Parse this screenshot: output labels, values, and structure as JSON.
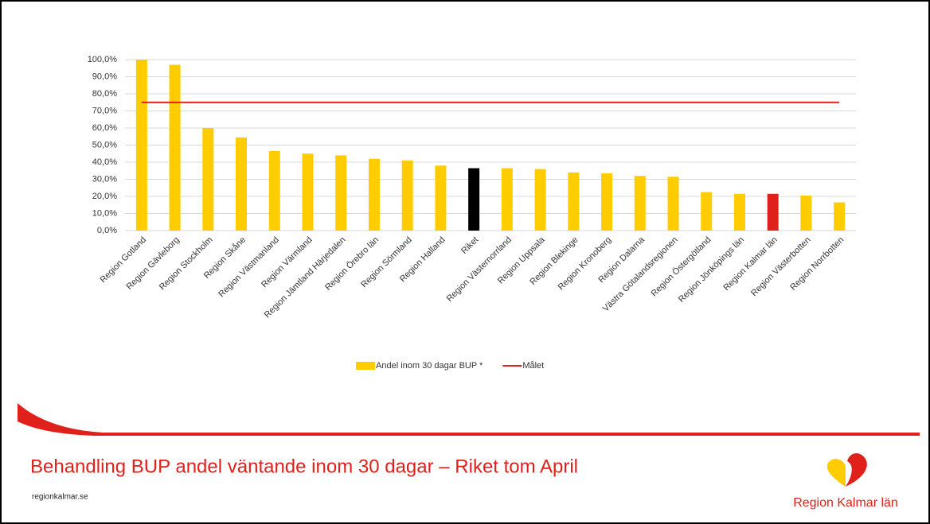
{
  "chart_data": {
    "type": "bar",
    "categories": [
      "Region Gotland",
      "Region Gävleborg",
      "Region Stockholm",
      "Region Skåne",
      "Region Västmanland",
      "Region Värmland",
      "Region Jämtland Härjedalen",
      "Region Örebro län",
      "Region Sörmland",
      "Region Halland",
      "Riket",
      "Region Västernorrland",
      "Region Uppsala",
      "Region Blekinge",
      "Region Kronoberg",
      "Region Dalarna",
      "Västra Götalandsregionen",
      "Region Östergötland",
      "Region Jönköpings län",
      "Region Kalmar län",
      "Region Västerbotten",
      "Region Norrbotten"
    ],
    "series": [
      {
        "name": "Andel inom 30 dagar BUP *",
        "type": "bar",
        "color": "#ffcc00",
        "colors": [
          "#ffcc00",
          "#ffcc00",
          "#ffcc00",
          "#ffcc00",
          "#ffcc00",
          "#ffcc00",
          "#ffcc00",
          "#ffcc00",
          "#ffcc00",
          "#ffcc00",
          "#000000",
          "#ffcc00",
          "#ffcc00",
          "#ffcc00",
          "#ffcc00",
          "#ffcc00",
          "#ffcc00",
          "#ffcc00",
          "#ffcc00",
          "#e0201b",
          "#ffcc00",
          "#ffcc00"
        ],
        "values": [
          100,
          97,
          60,
          54.5,
          46.5,
          45,
          44,
          42,
          41,
          38,
          36.5,
          36.5,
          36,
          34,
          33.5,
          32,
          31.5,
          22.5,
          21.5,
          21.5,
          20.5,
          16.5
        ]
      },
      {
        "name": "Målet",
        "type": "line",
        "color": "#e0201b",
        "values": [
          75,
          75,
          75,
          75,
          75,
          75,
          75,
          75,
          75,
          75,
          75,
          75,
          75,
          75,
          75,
          75,
          75,
          75,
          75,
          75,
          75,
          75
        ]
      }
    ],
    "ylim": [
      0,
      100
    ],
    "yticks": [
      {
        "value": 0,
        "label": "0,0%"
      },
      {
        "value": 10,
        "label": "10,0%"
      },
      {
        "value": 20,
        "label": "20,0%"
      },
      {
        "value": 30,
        "label": "30,0%"
      },
      {
        "value": 40,
        "label": "40,0%"
      },
      {
        "value": 50,
        "label": "50,0%"
      },
      {
        "value": 60,
        "label": "60,0%"
      },
      {
        "value": 70,
        "label": "70,0%"
      },
      {
        "value": 80,
        "label": "80,0%"
      },
      {
        "value": 90,
        "label": "90,0%"
      },
      {
        "value": 100,
        "label": "100,0%"
      }
    ],
    "grid": true,
    "legend": "bottom"
  },
  "slide": {
    "title": "Behandling BUP andel väntande inom 30 dagar – Riket tom April",
    "footer": "regionkalmar.se",
    "logo_text": "Region Kalmar län"
  }
}
